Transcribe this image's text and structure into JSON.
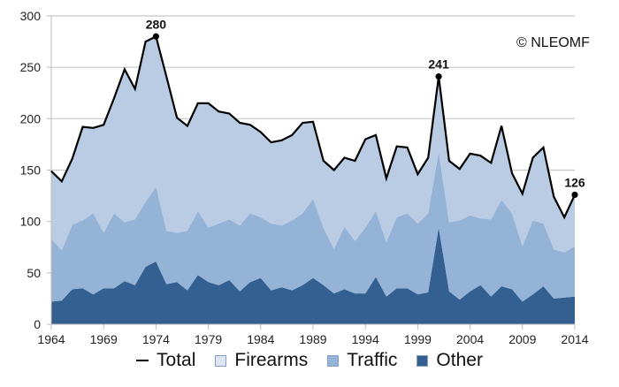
{
  "chart_data": {
    "type": "area",
    "stacked": true,
    "title": "",
    "xlabel": "",
    "ylabel": "",
    "ylim": [
      0,
      300
    ],
    "xlim": [
      1964,
      2014
    ],
    "yticks": [
      0,
      50,
      100,
      150,
      200,
      250,
      300
    ],
    "xticks": [
      1964,
      1969,
      1974,
      1979,
      1984,
      1989,
      1994,
      1999,
      2004,
      2009,
      2014
    ],
    "grid": "horizontal",
    "legend_position": "bottom",
    "x": [
      1964,
      1965,
      1966,
      1967,
      1968,
      1969,
      1970,
      1971,
      1972,
      1973,
      1974,
      1975,
      1976,
      1977,
      1978,
      1979,
      1980,
      1981,
      1982,
      1983,
      1984,
      1985,
      1986,
      1987,
      1988,
      1989,
      1990,
      1991,
      1992,
      1993,
      1994,
      1995,
      1996,
      1997,
      1998,
      1999,
      2000,
      2001,
      2002,
      2003,
      2004,
      2005,
      2006,
      2007,
      2008,
      2009,
      2010,
      2011,
      2012,
      2013,
      2014
    ],
    "series": [
      {
        "name": "Other",
        "color": "#335f91",
        "values": [
          22,
          23,
          34,
          35,
          29,
          35,
          35,
          42,
          38,
          56,
          61,
          39,
          41,
          33,
          48,
          41,
          38,
          43,
          32,
          41,
          45,
          33,
          36,
          33,
          38,
          45,
          38,
          30,
          34,
          30,
          30,
          46,
          27,
          35,
          35,
          29,
          31,
          94,
          32,
          24,
          32,
          38,
          27,
          37,
          34,
          22,
          29,
          37,
          25,
          26,
          27
        ]
      },
      {
        "name": "Traffic",
        "color": "#95b3d7",
        "values": [
          61,
          49,
          63,
          66,
          79,
          54,
          73,
          57,
          64,
          63,
          73,
          52,
          48,
          58,
          62,
          53,
          60,
          59,
          64,
          67,
          59,
          65,
          60,
          68,
          70,
          77,
          56,
          43,
          61,
          51,
          64,
          64,
          53,
          69,
          73,
          69,
          77,
          74,
          67,
          77,
          74,
          65,
          75,
          84,
          74,
          54,
          72,
          61,
          48,
          44,
          49
        ]
      },
      {
        "name": "Firearms",
        "color": "#b9cce4",
        "values": [
          66,
          67,
          64,
          91,
          83,
          105,
          112,
          149,
          127,
          156,
          146,
          150,
          112,
          102,
          105,
          121,
          109,
          103,
          100,
          86,
          83,
          79,
          83,
          83,
          88,
          75,
          65,
          77,
          67,
          78,
          86,
          74,
          62,
          69,
          64,
          48,
          54,
          73,
          60,
          50,
          60,
          61,
          55,
          72,
          39,
          51,
          61,
          74,
          51,
          34,
          50
        ]
      },
      {
        "name": "Total",
        "type": "line",
        "color": "#000000",
        "values": [
          149,
          139,
          161,
          192,
          191,
          194,
          220,
          248,
          229,
          275,
          280,
          241,
          201,
          193,
          215,
          215,
          207,
          205,
          196,
          194,
          187,
          177,
          179,
          184,
          196,
          197,
          159,
          150,
          162,
          159,
          180,
          184,
          142,
          173,
          172,
          146,
          162,
          241,
          159,
          151,
          166,
          164,
          157,
          193,
          147,
          127,
          162,
          172,
          124,
          104,
          126
        ]
      }
    ],
    "annotations": [
      {
        "x": 1974,
        "y": 280,
        "text": "280"
      },
      {
        "x": 2001,
        "y": 241,
        "text": "241"
      },
      {
        "x": 2014,
        "y": 126,
        "text": "126"
      }
    ]
  },
  "credit": "© NLEOMF",
  "legend": [
    {
      "label": "Total",
      "kind": "line",
      "color": "#000000"
    },
    {
      "label": "Firearms",
      "kind": "box",
      "color": "#dce6f2"
    },
    {
      "label": "Traffic",
      "kind": "box",
      "color": "#95b3d7"
    },
    {
      "label": "Other",
      "kind": "box",
      "color": "#335f91"
    }
  ]
}
